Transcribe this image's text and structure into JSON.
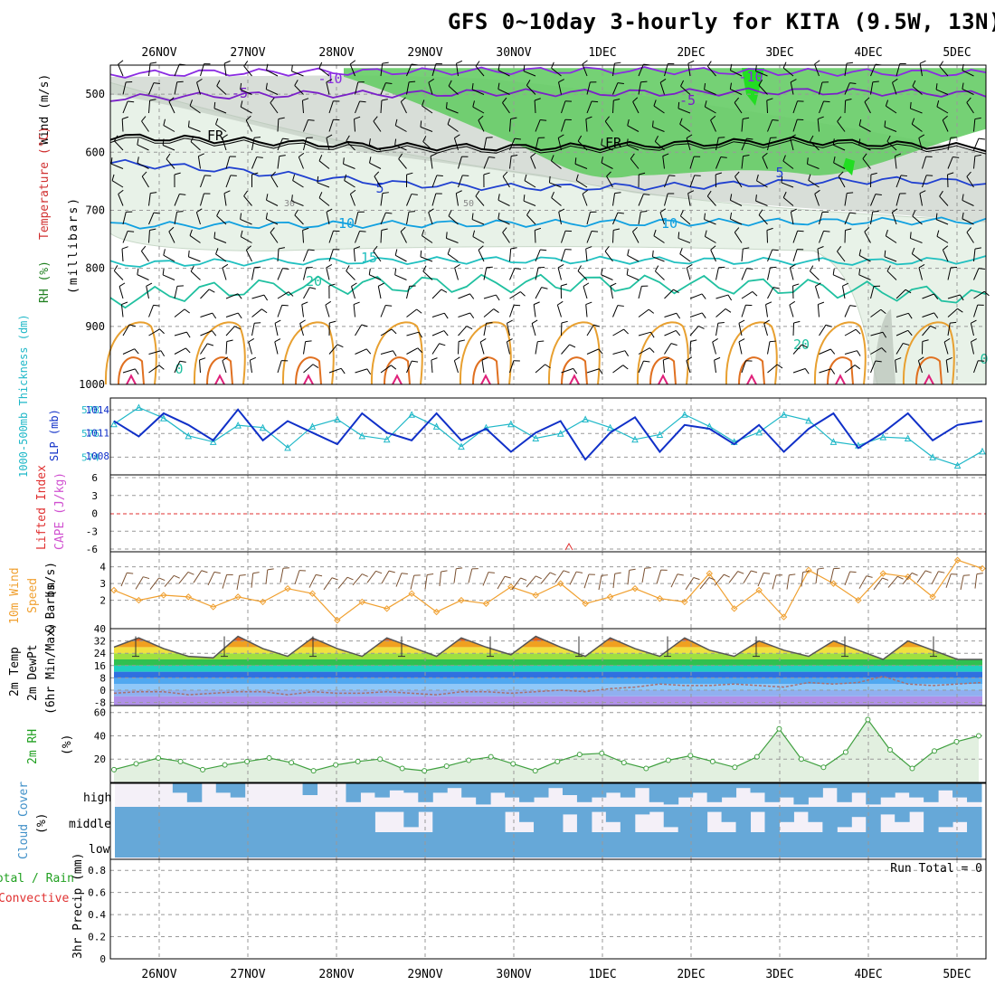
{
  "title": "GFS 0~10day 3-hourly for KITA (9.5W, 13N)",
  "dates": [
    "26NOV",
    "27NOV",
    "28NOV",
    "29NOV",
    "30NOV",
    "1DEC",
    "2DEC",
    "3DEC",
    "4DEC",
    "5DEC"
  ],
  "chart_data": [
    {
      "type": "area",
      "panel": "upper-air",
      "ylabel_parts": [
        "Wind (m/s)",
        "Temperature (°C)",
        "RH (%)",
        "(millibars)"
      ],
      "y_ticks": [
        500,
        600,
        700,
        800,
        900,
        1000
      ],
      "ylim": [
        450,
        1000
      ],
      "contour_labels": [
        "-10",
        "-5",
        "FR",
        "5",
        "10",
        "15",
        "20",
        "0",
        "30",
        "50",
        "-10",
        "-5",
        "FR",
        "5",
        "10",
        "20",
        "0"
      ],
      "isotherms_mb": [
        {
          "label": "-10",
          "color": "#8a2be2",
          "p": [
            466,
            463,
            462,
            461,
            460,
            459,
            460,
            462,
            463,
            464
          ]
        },
        {
          "label": "-5",
          "color": "#7a20c8",
          "p": [
            507,
            503,
            500,
            500,
            497,
            498,
            497,
            495,
            497,
            500
          ]
        },
        {
          "label": "FR",
          "color": "#000000",
          "p": [
            573,
            578,
            585,
            590,
            592,
            590,
            585,
            580,
            586,
            592
          ]
        },
        {
          "label": "5",
          "color": "#2040d0",
          "p": [
            618,
            628,
            642,
            655,
            660,
            660,
            658,
            652,
            648,
            652
          ]
        },
        {
          "label": "10",
          "color": "#10a0e0",
          "p": [
            726,
            726,
            725,
            724,
            723,
            722,
            721,
            720,
            719,
            718
          ]
        },
        {
          "label": "15",
          "color": "#20c0c0",
          "p": [
            793,
            790,
            788,
            787,
            786,
            786,
            787,
            788,
            789,
            785
          ]
        },
        {
          "label": "20",
          "color": "#20c0a0",
          "p": [
            855,
            838,
            830,
            828,
            826,
            826,
            828,
            832,
            840,
            852
          ]
        }
      ]
    },
    {
      "type": "line",
      "panel": "thickness-slp",
      "ylabel_parts": [
        "1000-500mb Thickness (dm)",
        "SLP (mb)"
      ],
      "left_ticks": [
        574,
        576,
        578
      ],
      "right_ticks": [
        1008,
        1011,
        1014
      ],
      "series": [
        {
          "name": "1000-500mb Thickness (dm)",
          "color": "#20b8c8",
          "values": [
            576.8,
            578.2,
            577.3,
            575.8,
            575.3,
            576.7,
            576.5,
            574.8,
            576.6,
            577.2,
            575.8,
            575.5,
            577.6,
            576.6,
            574.9,
            576.5,
            576.8,
            575.6,
            576.0,
            577.2,
            576.5,
            575.5,
            575.9,
            577.6,
            576.6,
            575.3,
            576.1,
            577.6,
            577.1,
            575.3,
            575.0,
            575.7,
            575.6,
            574.0,
            573.3,
            574.5
          ]
        },
        {
          "name": "SLP (mb)",
          "color": "#1030c8",
          "values": [
            1012.5,
            1010.5,
            1013.5,
            1012.0,
            1010.0,
            1014.0,
            1010.0,
            1012.5,
            1011.0,
            1009.5,
            1013.5,
            1011.0,
            1010.0,
            1013.5,
            1010.0,
            1011.5,
            1008.5,
            1011.0,
            1012.5,
            1007.5,
            1011.0,
            1013.0,
            1008.5,
            1012.0,
            1011.5,
            1009.5,
            1012.0,
            1008.5,
            1011.5,
            1013.5,
            1009.0,
            1011.0,
            1013.5,
            1010.0,
            1012.0,
            1012.5
          ]
        }
      ]
    },
    {
      "type": "line",
      "panel": "cape-li",
      "ylabel_parts": [
        "Lifted Index",
        "CAPE (J/kg)"
      ],
      "y_ticks": [
        "6",
        "3",
        "0",
        "-3",
        "-6"
      ],
      "series": [
        {
          "name": "Lifted Index",
          "color": "#e03030",
          "values": [
            0
          ]
        },
        {
          "name": "CAPE (J/kg)",
          "color": "#d050d0",
          "values": [
            0
          ]
        }
      ]
    },
    {
      "type": "line",
      "panel": "10m-wind",
      "ylabel_parts": [
        "10m Wind",
        "Speed",
        "(m/s)",
        "& Barbs"
      ],
      "y_ticks": [
        2,
        3,
        4
      ],
      "series": [
        {
          "name": "10m Wind Speed (m/s)",
          "color": "#f0a030",
          "values": [
            2.6,
            2.0,
            2.3,
            2.2,
            1.6,
            2.2,
            1.9,
            2.7,
            2.4,
            0.8,
            1.9,
            1.5,
            2.4,
            1.3,
            2.0,
            1.8,
            2.8,
            2.3,
            3.0,
            1.8,
            2.2,
            2.7,
            2.1,
            1.9,
            3.6,
            1.5,
            2.6,
            1.0,
            3.8,
            3.0,
            2.0,
            3.6,
            3.4,
            2.2,
            4.4,
            3.9
          ]
        }
      ]
    },
    {
      "type": "area",
      "panel": "2m-temp",
      "ylabel_parts": [
        "2m Temp",
        "2m DewPt",
        "(6hr Min/Max)"
      ],
      "y_ticks": [
        "40",
        "32",
        "24",
        "16",
        "8",
        "0",
        "-8"
      ],
      "series": [
        {
          "name": "2m Temp (°C)",
          "color": "#555555",
          "values": [
            28,
            34,
            27,
            22,
            21,
            35,
            27,
            22,
            34,
            27,
            22,
            34,
            28,
            22,
            34,
            28,
            23,
            35,
            28,
            22,
            34,
            27,
            22,
            34,
            26,
            22,
            32,
            26,
            22,
            32,
            26,
            20,
            32,
            26,
            20,
            20
          ]
        },
        {
          "name": "2m DewPt (°C)",
          "color": "#aa7070",
          "values": [
            -2,
            -1,
            -1,
            -3,
            -2,
            -1,
            -1,
            -3,
            -1,
            -2,
            -2,
            -1,
            -2,
            -3,
            -1,
            -1,
            -2,
            -1,
            0,
            -1,
            1,
            2,
            4,
            3,
            3,
            4,
            3,
            2,
            5,
            4,
            5,
            9,
            4,
            3,
            4,
            5
          ]
        }
      ]
    },
    {
      "type": "area",
      "panel": "2m-rh",
      "ylabel_parts": [
        "2m RH",
        "(%)"
      ],
      "y_ticks": [
        20,
        40,
        60
      ],
      "series": [
        {
          "name": "2m RH (%)",
          "color": "#40a040",
          "values": [
            11,
            16,
            21,
            18,
            11,
            15,
            18,
            21,
            17,
            10,
            15,
            18,
            20,
            12,
            10,
            14,
            19,
            22,
            16,
            10,
            18,
            24,
            25,
            17,
            12,
            19,
            23,
            18,
            13,
            22,
            46,
            20,
            13,
            26,
            54,
            28,
            12,
            27,
            35,
            40
          ]
        }
      ]
    },
    {
      "type": "bar",
      "panel": "cloud-cover",
      "ylabel_parts": [
        "Cloud Cover",
        "(%)"
      ],
      "levels": [
        "high",
        "middle",
        "low"
      ],
      "series": [
        {
          "name": "high",
          "values": [
            0,
            0,
            0,
            0,
            40,
            80,
            0,
            40,
            60,
            0,
            0,
            0,
            0,
            50,
            0,
            0,
            80,
            40,
            60,
            30,
            40,
            80,
            40,
            20,
            60,
            90,
            40,
            60,
            80,
            60,
            20,
            50,
            80,
            60,
            40,
            60,
            20,
            80,
            90,
            60,
            40,
            80,
            60,
            20,
            40,
            80,
            60,
            90,
            60,
            20,
            80,
            40,
            90,
            60,
            40,
            60,
            80,
            30,
            60,
            80
          ]
        },
        {
          "name": "middle",
          "values": [
            100,
            100,
            100,
            100,
            100,
            100,
            100,
            100,
            100,
            100,
            100,
            100,
            100,
            100,
            100,
            100,
            100,
            100,
            20,
            20,
            80,
            20,
            100,
            100,
            100,
            100,
            100,
            20,
            60,
            100,
            100,
            30,
            100,
            20,
            60,
            100,
            30,
            20,
            80,
            100,
            100,
            20,
            60,
            100,
            20,
            100,
            60,
            20,
            60,
            100,
            80,
            40,
            100,
            30,
            60,
            20,
            100,
            80,
            60,
            100
          ]
        },
        {
          "name": "low",
          "values": [
            100,
            100,
            100,
            100,
            100,
            100,
            100,
            100,
            100,
            100,
            100,
            100,
            100,
            100,
            100,
            100,
            100,
            100,
            100,
            100,
            100,
            100,
            100,
            100,
            100,
            100,
            100,
            100,
            100,
            100,
            100,
            100,
            100,
            100,
            100,
            100,
            100,
            100,
            100,
            100,
            100,
            100,
            100,
            100,
            100,
            100,
            100,
            100,
            100,
            100,
            100,
            100,
            100,
            100,
            100,
            100,
            100,
            100,
            100,
            100
          ]
        }
      ]
    },
    {
      "type": "bar",
      "panel": "precip",
      "ylabel_parts": [
        "Total / Rain",
        "Convective",
        "3hr Precip (mm)"
      ],
      "y_ticks": [
        "0",
        "0.2",
        "0.4",
        "0.6",
        "0.8"
      ],
      "ylim": [
        0,
        0.9
      ],
      "run_total_label": "Run Total = 0",
      "series": [
        {
          "name": "3hr Precip (mm)",
          "values": [
            0
          ]
        }
      ]
    }
  ],
  "colors": {
    "rh30": "#e8f2e8",
    "rh50": "#bfdcbf",
    "rh70": "#66cc66",
    "rh90": "#22dd22",
    "grey": "#b8c2b8"
  }
}
